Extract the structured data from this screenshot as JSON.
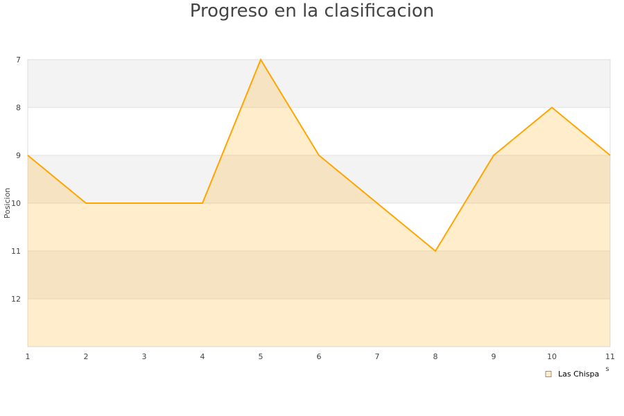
{
  "chart_data": {
    "type": "area",
    "title": "Progreso en la clasificacion",
    "xlabel": "s",
    "ylabel": "Posicion",
    "x": [
      1,
      2,
      3,
      4,
      5,
      6,
      7,
      8,
      9,
      10,
      11
    ],
    "series": [
      {
        "name": "Las Chispa",
        "values": [
          9,
          10,
          10,
          10,
          7,
          9,
          10,
          11,
          9,
          8,
          9
        ]
      }
    ],
    "xlim": [
      1,
      11
    ],
    "ylim": [
      7,
      13
    ],
    "y_inverted": true,
    "yticks": [
      7,
      8,
      9,
      10,
      11,
      12
    ],
    "xticks": [
      1,
      2,
      3,
      4,
      5,
      6,
      7,
      8,
      9,
      10,
      11
    ],
    "grid": true,
    "legend": "bottom-right",
    "colors": {
      "line": "#ffa500",
      "band": "#f3f3f3",
      "grid": "#e0e0e0"
    }
  }
}
